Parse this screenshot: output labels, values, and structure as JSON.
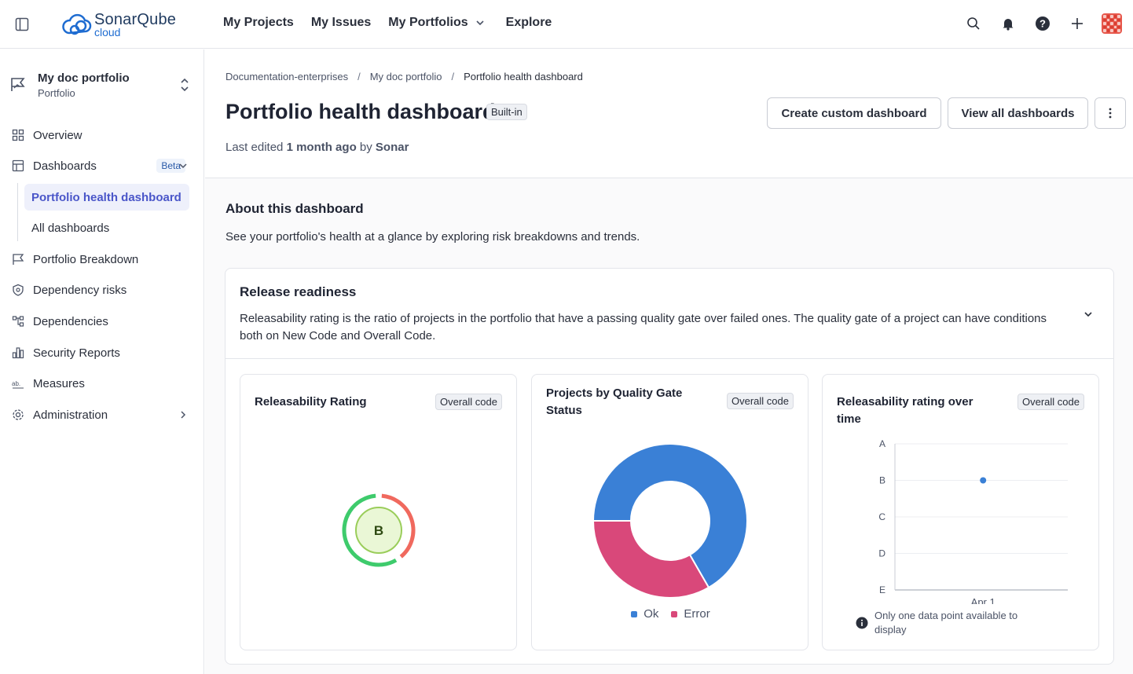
{
  "app": {
    "logo_text": "SonarQube",
    "logo_sub": "cloud"
  },
  "topnav": [
    {
      "label": "My Projects"
    },
    {
      "label": "My Issues"
    },
    {
      "label": "My Portfolios"
    },
    {
      "label": "Explore"
    }
  ],
  "portfolio": {
    "name": "My doc portfolio",
    "type": "Portfolio"
  },
  "sidebar": {
    "overview": "Overview",
    "dashboards": "Dashboards",
    "dashboards_badge": "Beta",
    "sub_active": "Portfolio health dashboard",
    "sub_all": "All dashboards",
    "breakdown": "Portfolio Breakdown",
    "dep_risks": "Dependency risks",
    "dependencies": "Dependencies",
    "security": "Security Reports",
    "measures": "Measures",
    "admin": "Administration"
  },
  "breadcrumb": {
    "item1": "Documentation-enterprises",
    "item2": "My doc portfolio",
    "current": "Portfolio health dashboard",
    "separator": "/"
  },
  "header": {
    "title": "Portfolio health dashboard",
    "badge": "Built-in",
    "last_edited_prefix": "Last edited",
    "last_edited_time": "1 month ago",
    "by": "by",
    "author": "Sonar",
    "create_btn": "Create custom dashboard",
    "view_all_btn": "View all dashboards"
  },
  "about": {
    "title": "About this dashboard",
    "desc": "See your portfolio's health at a glance by exploring risk breakdowns and trends."
  },
  "section": {
    "title": "Release readiness",
    "desc": "Releasability rating is the ratio of projects in the portfolio that have a passing quality gate over failed ones. The quality gate of a project can have conditions both on New Code and Overall Code."
  },
  "cards": {
    "rating": {
      "title": "Releasability Rating",
      "badge": "Overall code",
      "value": "B"
    },
    "quality_gate": {
      "title": "Projects by Quality Gate Status",
      "badge": "Overall code"
    },
    "over_time": {
      "title": "Releasability rating over time",
      "badge": "Overall code",
      "note": "Only one data point available to display"
    }
  },
  "colors": {
    "ok": "#3a80d6",
    "error": "#d9487a",
    "rating_green": "#3ecb6c",
    "rating_red": "#f0695e"
  },
  "chart_data": [
    {
      "type": "pie",
      "categories": [
        "Ok",
        "Error"
      ],
      "values": [
        2,
        1
      ],
      "title": "Projects by Quality Gate Status"
    },
    {
      "type": "scatter",
      "title": "Releasability rating over time",
      "x": [
        "Apr 1"
      ],
      "y": [
        "B"
      ],
      "y_categories": [
        "A",
        "B",
        "C",
        "D",
        "E"
      ]
    }
  ]
}
